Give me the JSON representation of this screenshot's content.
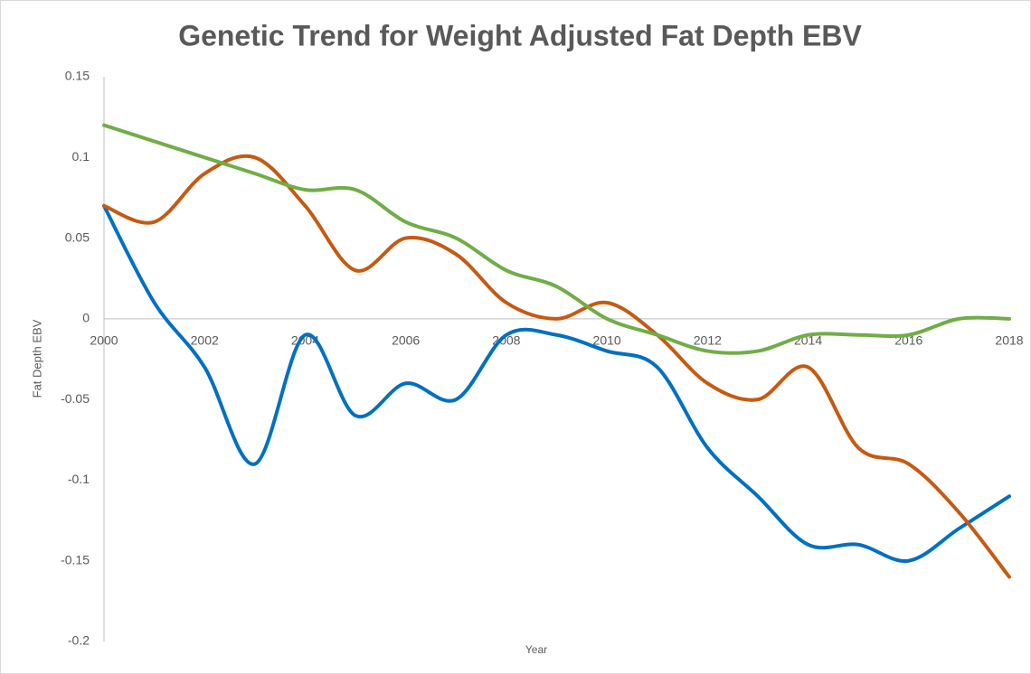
{
  "chart_data": {
    "type": "line",
    "title": "Genetic Trend for Weight Adjusted Fat Depth EBV",
    "xlabel": "Year",
    "ylabel": "Fat Depth EBV",
    "x": [
      2000,
      2001,
      2002,
      2003,
      2004,
      2005,
      2006,
      2007,
      2008,
      2009,
      2010,
      2011,
      2012,
      2013,
      2014,
      2015,
      2016,
      2017,
      2018
    ],
    "series": [
      {
        "color": "#0070c0",
        "values": [
          0.07,
          0.01,
          -0.03,
          -0.09,
          -0.01,
          -0.06,
          -0.04,
          -0.05,
          -0.01,
          -0.01,
          -0.02,
          -0.03,
          -0.08,
          -0.11,
          -0.14,
          -0.14,
          -0.15,
          -0.13,
          -0.11
        ]
      },
      {
        "color": "#c55a11",
        "values": [
          0.07,
          0.06,
          0.09,
          0.1,
          0.07,
          0.03,
          0.05,
          0.04,
          0.01,
          0.0,
          0.01,
          -0.01,
          -0.04,
          -0.05,
          -0.03,
          -0.08,
          -0.09,
          -0.12,
          -0.16
        ]
      },
      {
        "color": "#70ad47",
        "values": [
          0.12,
          0.11,
          0.1,
          0.09,
          0.08,
          0.08,
          0.06,
          0.05,
          0.03,
          0.02,
          0.0,
          -0.01,
          -0.02,
          -0.02,
          -0.01,
          -0.01,
          -0.01,
          0.0,
          0.0
        ]
      }
    ],
    "xlim": [
      2000,
      2018
    ],
    "xticks": [
      2000,
      2002,
      2004,
      2006,
      2008,
      2010,
      2012,
      2014,
      2016,
      2018
    ],
    "ylim": [
      -0.2,
      0.15
    ],
    "yticks": [
      0.15,
      0.1,
      0.05,
      0,
      -0.05,
      -0.1,
      -0.15,
      -0.2
    ],
    "smooth": true,
    "grid": false
  }
}
